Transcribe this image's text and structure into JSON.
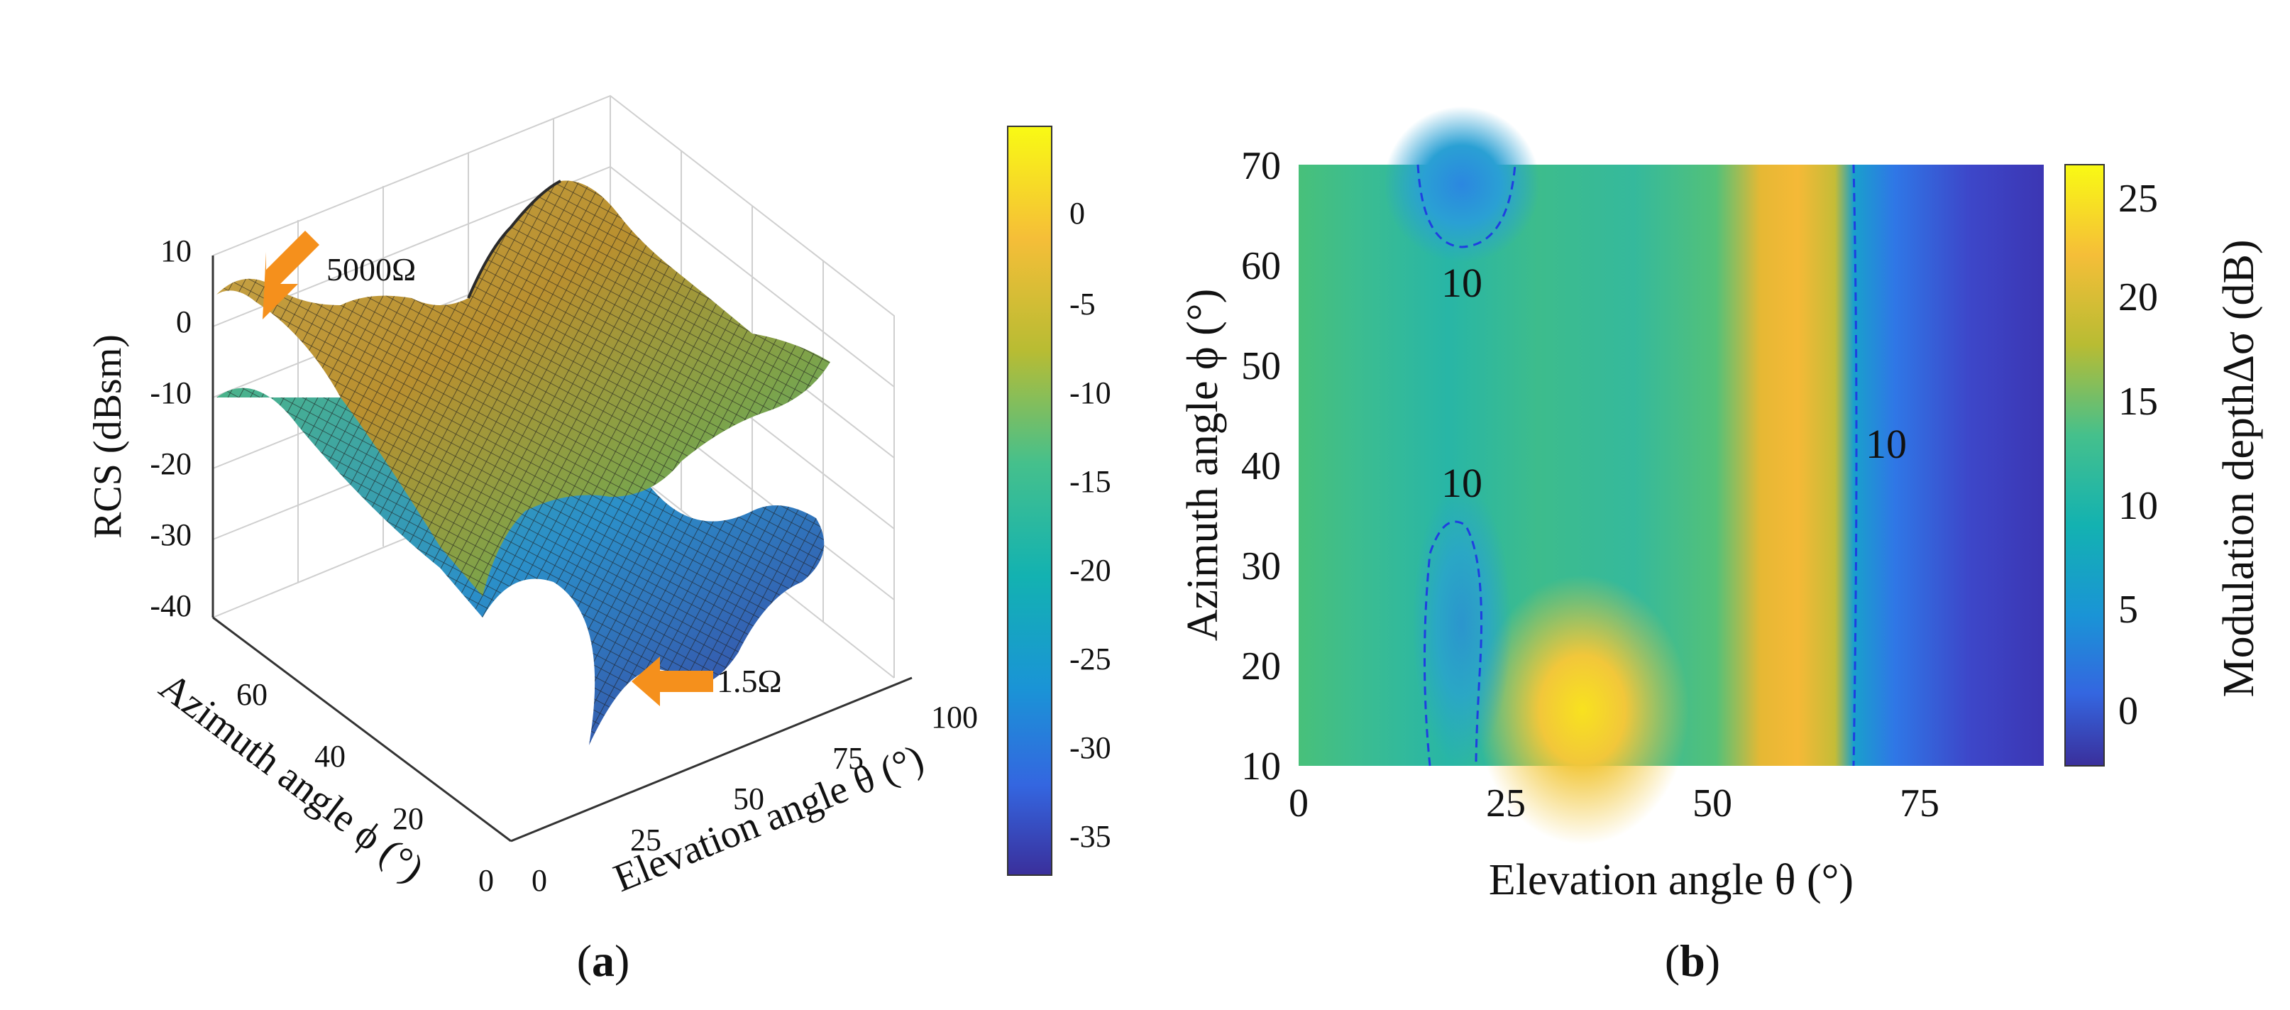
{
  "chart_data": [
    {
      "panel": "(a)",
      "type": "surface3d",
      "zlabel": "RCS (dBsm)",
      "xlabel": "Elevation angle θ (°)",
      "ylabel": "Azimuth angle ϕ (°)",
      "z_ticks": [
        "10",
        "0",
        "-10",
        "-20",
        "-30",
        "-40"
      ],
      "x_ticks": [
        "0",
        "25",
        "50",
        "75",
        "100"
      ],
      "y_ticks": [
        "0",
        "20",
        "40",
        "60"
      ],
      "zlim": [
        -40,
        10
      ],
      "xlim": [
        0,
        100
      ],
      "ylim": [
        0,
        70
      ],
      "surfaces": [
        {
          "name": "5000Ω",
          "label": "5000Ω"
        },
        {
          "name": "1.5Ω",
          "label": "1.5Ω"
        }
      ],
      "colorbar": {
        "ticks": [
          "0",
          "-5",
          "-10",
          "-15",
          "-20",
          "-25",
          "-30",
          "-35"
        ],
        "range": [
          -37,
          5
        ]
      }
    },
    {
      "panel": "(b)",
      "type": "heatmap",
      "xlabel": "Elevation angle θ (°)",
      "ylabel": "Azimuth angle ϕ (°)",
      "x_ticks": [
        "0",
        "25",
        "50",
        "75"
      ],
      "y_ticks": [
        "10",
        "20",
        "30",
        "40",
        "50",
        "60",
        "70"
      ],
      "xlim": [
        0,
        90
      ],
      "ylim": [
        10,
        70
      ],
      "contour_level": 10,
      "contour_labels": [
        "10",
        "10",
        "10"
      ],
      "colorbar": {
        "label": "Modulation depthΔσ (dB)",
        "ticks": [
          "0",
          "5",
          "10",
          "15",
          "20",
          "25"
        ],
        "range": [
          -3,
          26
        ]
      },
      "profile_over_elevation": {
        "theta": [
          0,
          10,
          20,
          30,
          40,
          50,
          55,
          60,
          65,
          68,
          75,
          85,
          90
        ],
        "delta_sigma_db": [
          14,
          13,
          12,
          15,
          13,
          14,
          19,
          22,
          18,
          9,
          2,
          -2,
          -2
        ]
      }
    }
  ],
  "labels": {
    "panel_a": "(a)",
    "panel_b": "(b)",
    "label_a_letter": "a",
    "label_b_letter": "b"
  }
}
